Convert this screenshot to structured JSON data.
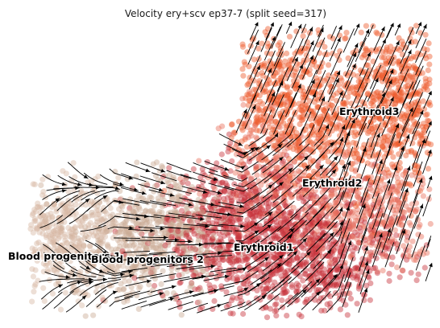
{
  "title": "Velocity ery+scv ep37-7 (split seed=317)",
  "clusters": [
    {
      "name": "Blood progenitors 1",
      "color": "#d8b9a4"
    },
    {
      "name": "Blood progenitors 2",
      "color": "#c9ab95"
    },
    {
      "name": "Erythroid1",
      "color": "#c8323c"
    },
    {
      "name": "Erythroid2",
      "color": "#e8705e"
    },
    {
      "name": "Erythroid3",
      "color": "#ee5a2c"
    }
  ],
  "colors": {
    "stream": "#000000",
    "background": "#ffffff"
  }
}
